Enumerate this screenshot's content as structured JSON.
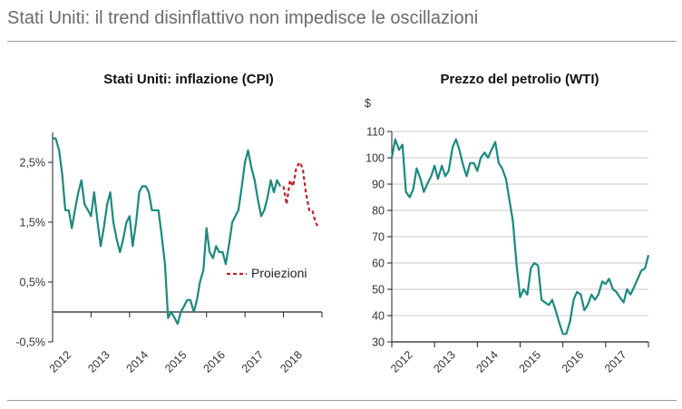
{
  "page": {
    "title": "Stati Uniti: il trend disinflattivo non impedisce le oscillazioni"
  },
  "colors": {
    "series": "#1a8a7e",
    "projection": "#c0202a",
    "axis": "#222222",
    "grid": "#c8c8c8",
    "rule": "#9a9a9a"
  },
  "chart_data": [
    {
      "type": "line",
      "title": "Stati Uniti: inflazione (CPI)",
      "ylabel": "",
      "ylim": [
        -0.5,
        3.0
      ],
      "yticks": [
        2.5,
        1.5,
        0.5,
        -0.5
      ],
      "ytick_labels": [
        "2,5%",
        "1,5%",
        "0,5%",
        "-0,5%"
      ],
      "xlim": [
        2012,
        2019
      ],
      "xticks": [
        "2012",
        "2013",
        "2014",
        "2015",
        "2016",
        "2017",
        "2018"
      ],
      "grid": false,
      "legend": {
        "position": "center-right",
        "entries": [
          {
            "label": "Proiezioni",
            "style": "dashed"
          }
        ]
      },
      "series": [
        {
          "kind": "actual",
          "x": [
            2012.0,
            2012.08,
            2012.17,
            2012.25,
            2012.33,
            2012.42,
            2012.5,
            2012.58,
            2012.67,
            2012.75,
            2012.83,
            2012.92,
            2013.0,
            2013.08,
            2013.17,
            2013.25,
            2013.33,
            2013.42,
            2013.5,
            2013.58,
            2013.67,
            2013.75,
            2013.83,
            2013.92,
            2014.0,
            2014.08,
            2014.17,
            2014.25,
            2014.33,
            2014.42,
            2014.5,
            2014.58,
            2014.67,
            2014.75,
            2014.83,
            2014.92,
            2015.0,
            2015.08,
            2015.17,
            2015.25,
            2015.33,
            2015.42,
            2015.5,
            2015.58,
            2015.67,
            2015.75,
            2015.83,
            2015.92,
            2016.0,
            2016.08,
            2016.17,
            2016.25,
            2016.33,
            2016.42,
            2016.5,
            2016.58,
            2016.67,
            2016.75,
            2016.83,
            2016.92,
            2017.0,
            2017.08,
            2017.17,
            2017.25,
            2017.33,
            2017.42,
            2017.5,
            2017.58,
            2017.67,
            2017.75,
            2017.83,
            2017.92
          ],
          "y": [
            2.9,
            2.9,
            2.7,
            2.3,
            1.7,
            1.7,
            1.4,
            1.7,
            2.0,
            2.2,
            1.8,
            1.7,
            1.6,
            2.0,
            1.5,
            1.1,
            1.4,
            1.8,
            2.0,
            1.5,
            1.2,
            1.0,
            1.2,
            1.5,
            1.6,
            1.1,
            1.5,
            2.0,
            2.1,
            2.1,
            2.0,
            1.7,
            1.7,
            1.7,
            1.3,
            0.8,
            -0.1,
            0.0,
            -0.1,
            -0.2,
            0.0,
            0.1,
            0.2,
            0.2,
            0.0,
            0.2,
            0.5,
            0.7,
            1.4,
            1.0,
            0.9,
            1.1,
            1.0,
            1.0,
            0.8,
            1.1,
            1.5,
            1.6,
            1.7,
            2.1,
            2.5,
            2.7,
            2.4,
            2.2,
            1.9,
            1.6,
            1.7,
            1.9,
            2.2,
            2.0,
            2.2,
            2.1
          ]
        },
        {
          "kind": "projection",
          "name": "Proiezioni",
          "x": [
            2018.0,
            2018.08,
            2018.17,
            2018.25,
            2018.33,
            2018.42,
            2018.5,
            2018.58,
            2018.67,
            2018.75,
            2018.83,
            2018.92
          ],
          "y": [
            2.1,
            1.8,
            2.2,
            2.1,
            2.4,
            2.5,
            2.4,
            2.0,
            1.7,
            1.7,
            1.5,
            1.4
          ]
        }
      ]
    },
    {
      "type": "line",
      "title": "Prezzo del petrolio (WTI)",
      "ylabel": "$",
      "ylim": [
        30,
        110
      ],
      "yticks": [
        110,
        100,
        90,
        80,
        70,
        60,
        50,
        40,
        30
      ],
      "ytick_labels": [
        "110",
        "100",
        "90",
        "80",
        "70",
        "60",
        "50",
        "40",
        "30"
      ],
      "xlim": [
        2012,
        2018
      ],
      "xticks": [
        "2012",
        "2013",
        "2014",
        "2015",
        "2016",
        "2017"
      ],
      "grid": true,
      "series": [
        {
          "kind": "actual",
          "x": [
            2012.0,
            2012.08,
            2012.17,
            2012.25,
            2012.33,
            2012.42,
            2012.5,
            2012.58,
            2012.67,
            2012.75,
            2012.83,
            2012.92,
            2013.0,
            2013.08,
            2013.17,
            2013.25,
            2013.33,
            2013.42,
            2013.5,
            2013.58,
            2013.67,
            2013.75,
            2013.83,
            2013.92,
            2014.0,
            2014.08,
            2014.17,
            2014.25,
            2014.33,
            2014.42,
            2014.5,
            2014.58,
            2014.67,
            2014.75,
            2014.83,
            2014.92,
            2015.0,
            2015.08,
            2015.17,
            2015.25,
            2015.33,
            2015.42,
            2015.5,
            2015.58,
            2015.67,
            2015.75,
            2015.83,
            2015.92,
            2016.0,
            2016.08,
            2016.17,
            2016.25,
            2016.33,
            2016.42,
            2016.5,
            2016.58,
            2016.67,
            2016.75,
            2016.83,
            2016.92,
            2017.0,
            2017.08,
            2017.17,
            2017.25,
            2017.33,
            2017.42,
            2017.5,
            2017.58,
            2017.67,
            2017.75,
            2017.83,
            2017.92,
            2018.0
          ],
          "y": [
            100,
            107,
            103,
            105,
            87,
            85,
            88,
            96,
            92,
            87,
            90,
            93,
            97,
            92,
            97,
            93,
            95,
            104,
            107,
            103,
            97,
            93,
            98,
            98,
            95,
            100,
            102,
            100,
            103,
            106,
            98,
            96,
            92,
            84,
            76,
            59,
            47,
            50,
            48,
            58,
            60,
            59,
            46,
            45,
            44,
            46,
            42,
            37,
            33,
            33,
            38,
            46,
            49,
            48,
            42,
            44,
            48,
            46,
            48,
            53,
            52,
            54,
            50,
            49,
            47,
            45,
            50,
            48,
            51,
            54,
            57,
            58,
            63
          ]
        }
      ]
    }
  ]
}
